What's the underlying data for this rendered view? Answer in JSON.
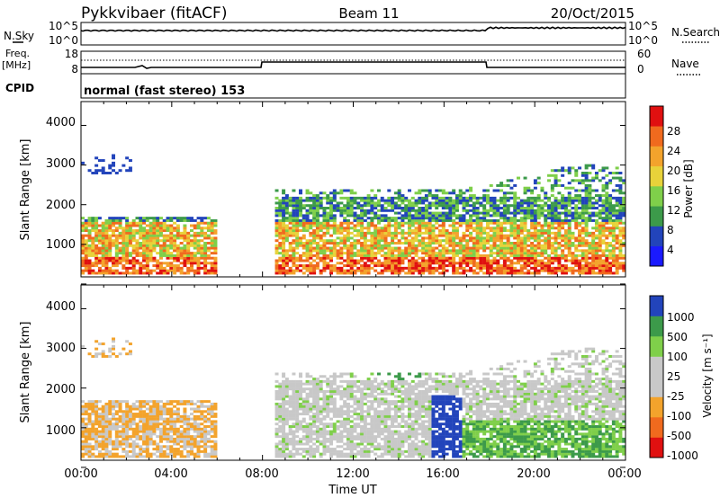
{
  "header": {
    "title": "Pykkvibaer (fitACF)",
    "beam": "Beam 11",
    "date": "20/Oct/2015"
  },
  "strip_nsky": {
    "left_label": "N.Sky",
    "left_ticks": [
      "10^5",
      "10^0"
    ],
    "right_ticks": [
      "10^5",
      "10^0"
    ],
    "right_label": "N.Search"
  },
  "strip_freq": {
    "left_label_1": "Freq.",
    "left_label_2": "[MHz]",
    "left_ticks": [
      "18",
      "8"
    ],
    "right_ticks": [
      "60",
      "0"
    ],
    "right_label": "Nave"
  },
  "cpid": {
    "label": "CPID",
    "text": "normal (fast stereo) 153"
  },
  "time_axis": {
    "label": "Time UT",
    "ticks": [
      "00:00",
      "04:00",
      "08:00",
      "12:00",
      "16:00",
      "20:00",
      "00:00"
    ]
  },
  "colors": {
    "power": [
      "#1a1aff",
      "#2244bb",
      "#3c9a4a",
      "#7fcf4a",
      "#e8d23a",
      "#f3a32c",
      "#f06a1e",
      "#e01010"
    ],
    "velocity": [
      "#e01010",
      "#f06a1e",
      "#f3a32c",
      "#c8c8c8",
      "#c8c8c8",
      "#7fcf4a",
      "#3c9a4a",
      "#2244bb"
    ]
  },
  "chart_data": [
    {
      "type": "heatmap",
      "name": "power",
      "ylabel": "Slant Range [km]",
      "xlabel": "",
      "ylim": [
        180,
        4600
      ],
      "yticks": [
        "4000",
        "3000",
        "2000",
        "1000"
      ],
      "colorbar_label": "Power [dB]",
      "colorbar_ticks": [
        "28",
        "24",
        "20",
        "16",
        "12",
        "8",
        "4"
      ],
      "colorbar_range": [
        0,
        32
      ],
      "xlim_hours": [
        0,
        24
      ]
    },
    {
      "type": "heatmap",
      "name": "velocity",
      "ylabel": "Slant Range [km]",
      "xlabel": "Time UT",
      "ylim": [
        180,
        4600
      ],
      "yticks": [
        "4000",
        "3000",
        "2000",
        "1000"
      ],
      "colorbar_label": "Velocity [m s⁻¹]",
      "colorbar_ticks": [
        "1000",
        "500",
        "100",
        "25",
        "-25",
        "-100",
        "-500",
        "-1000"
      ],
      "xlim_hours": [
        0,
        24
      ]
    }
  ]
}
